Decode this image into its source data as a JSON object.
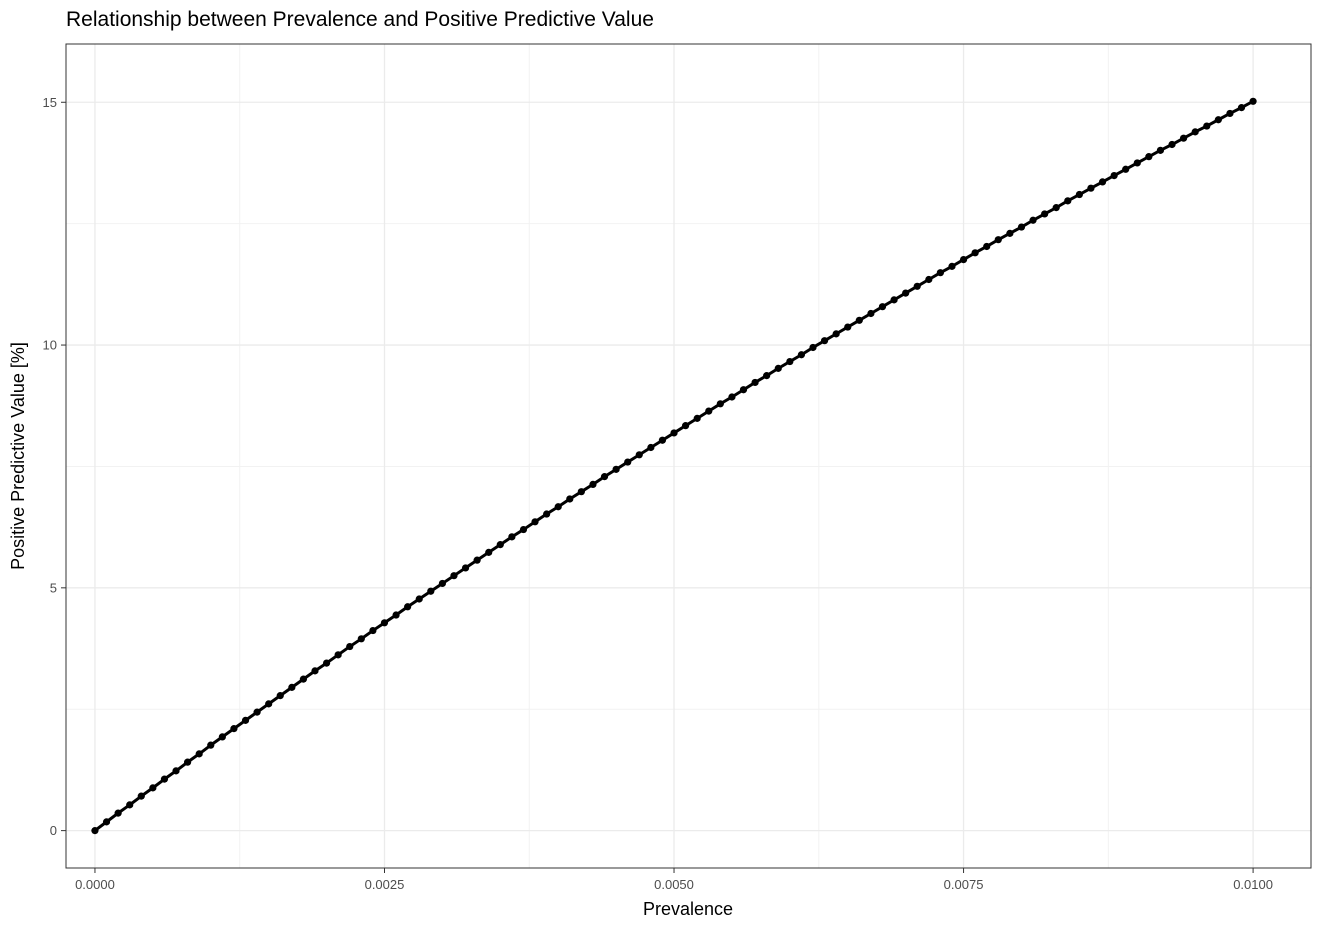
{
  "chart_data": {
    "type": "line",
    "title": "Relationship between Prevalence and Positive Predictive Value",
    "xlabel": "Prevalence",
    "ylabel": "Positive Predictive Value [%]",
    "xlim": [
      -0.00025,
      0.0105
    ],
    "ylim": [
      -0.77,
      16.2
    ],
    "x_ticks": [
      0.0,
      0.0025,
      0.005,
      0.0075,
      0.01
    ],
    "x_tick_labels": [
      "0.0000",
      "0.0025",
      "0.0050",
      "0.0075",
      "0.0100"
    ],
    "y_ticks": [
      0,
      5,
      10,
      15
    ],
    "y_tick_labels": [
      "0",
      "5",
      "10",
      "15"
    ],
    "grid": true,
    "theme": "black-and-white panel with light gray grid",
    "series": [
      {
        "color": "#000000",
        "markers": "points",
        "x": [
          0.0,
          0.0001,
          0.0002,
          0.0003,
          0.0004,
          0.0005,
          0.0006,
          0.0007,
          0.0008,
          0.0009,
          0.001,
          0.0011,
          0.0012,
          0.0013,
          0.0014,
          0.0015,
          0.0016,
          0.0017,
          0.0018,
          0.0019,
          0.002,
          0.0021,
          0.0022,
          0.0023,
          0.0024,
          0.0025,
          0.0026,
          0.0027,
          0.0028,
          0.0029,
          0.003,
          0.0031,
          0.0032,
          0.0033,
          0.0034,
          0.0035,
          0.0036,
          0.0037,
          0.0038,
          0.0039,
          0.004,
          0.0041,
          0.0042,
          0.0043,
          0.0044,
          0.0045,
          0.0046,
          0.0047,
          0.0048,
          0.0049,
          0.005,
          0.0051,
          0.0052,
          0.0053,
          0.0054,
          0.0055,
          0.0056,
          0.0057,
          0.0058,
          0.0059,
          0.006,
          0.0061,
          0.0062,
          0.0063,
          0.0064,
          0.0065,
          0.0066,
          0.0067,
          0.0068,
          0.0069,
          0.007,
          0.0071,
          0.0072,
          0.0073,
          0.0074,
          0.0075,
          0.0076,
          0.0077,
          0.0078,
          0.0079,
          0.008,
          0.0081,
          0.0082,
          0.0083,
          0.0084,
          0.0085,
          0.0086,
          0.0087,
          0.0088,
          0.0089,
          0.009,
          0.0091,
          0.0092,
          0.0093,
          0.0094,
          0.0095,
          0.0096,
          0.0097,
          0.0098,
          0.0099,
          0.01
        ],
        "y": [
          0.0,
          0.18,
          0.36,
          0.53,
          0.71,
          0.88,
          1.06,
          1.23,
          1.41,
          1.58,
          1.76,
          1.93,
          2.1,
          2.27,
          2.44,
          2.61,
          2.78,
          2.95,
          3.12,
          3.29,
          3.45,
          3.62,
          3.79,
          3.95,
          4.12,
          4.28,
          4.44,
          4.61,
          4.77,
          4.93,
          5.09,
          5.25,
          5.41,
          5.57,
          5.73,
          5.89,
          6.05,
          6.2,
          6.36,
          6.52,
          6.67,
          6.83,
          6.98,
          7.13,
          7.29,
          7.44,
          7.59,
          7.74,
          7.89,
          8.04,
          8.19,
          8.34,
          8.49,
          8.64,
          8.79,
          8.93,
          9.08,
          9.23,
          9.37,
          9.52,
          9.66,
          9.8,
          9.95,
          10.09,
          10.23,
          10.37,
          10.51,
          10.65,
          10.79,
          10.93,
          11.07,
          11.21,
          11.35,
          11.49,
          11.62,
          11.76,
          11.9,
          12.03,
          12.17,
          12.3,
          12.43,
          12.57,
          12.7,
          12.83,
          12.97,
          13.1,
          13.23,
          13.36,
          13.49,
          13.62,
          13.75,
          13.88,
          14.01,
          14.13,
          14.26,
          14.39,
          14.51,
          14.64,
          14.77,
          14.89,
          15.02
        ]
      }
    ]
  }
}
